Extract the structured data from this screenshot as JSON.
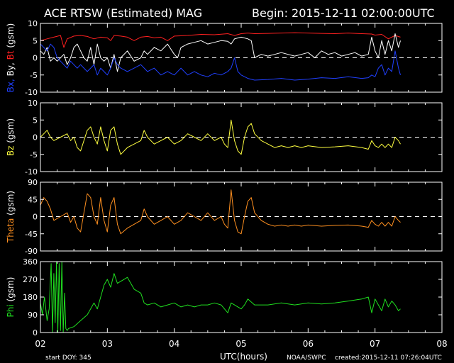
{
  "header": {
    "title": "ACE RTSW (Estimated) MAG",
    "begin": "Begin: 2015-12-11 02:00:00UTC"
  },
  "footer": {
    "start_doy": "start DOY:  345",
    "xlabel": "UTC(hours)",
    "agency": "NOAA/SWPC",
    "created": "created:2015-12-11 07:26:04UTC"
  },
  "colors": {
    "background": "#000000",
    "frame": "#ffffff",
    "bt": "#ff2020",
    "by": "#ffffff",
    "bx": "#2040ff",
    "bz": "#ffff40",
    "theta": "#ff9020",
    "phi": "#20e020"
  },
  "chart_data": [
    {
      "type": "line",
      "panel": "B components",
      "ylabel_parts": [
        {
          "text": "Bx,",
          "color": "#2040ff"
        },
        {
          "text": "By,",
          "color": "#ffffff"
        },
        {
          "text": "Bt",
          "color": "#ff2020"
        },
        {
          "text": "(gsm)",
          "color": "#ffffff"
        }
      ],
      "ylim": [
        -10,
        10
      ],
      "yticks": [
        10,
        5,
        0,
        -5,
        -10
      ],
      "zero_line": true,
      "xlim": [
        2,
        8
      ],
      "xticks": [
        "02",
        "03",
        "04",
        "05",
        "06",
        "07",
        "08"
      ],
      "series": [
        {
          "name": "Bt",
          "color": "#ff2020",
          "x": [
            2.0,
            2.1,
            2.2,
            2.3,
            2.35,
            2.4,
            2.5,
            2.6,
            2.7,
            2.8,
            2.9,
            3.0,
            3.05,
            3.1,
            3.2,
            3.3,
            3.4,
            3.5,
            3.6,
            3.7,
            3.8,
            3.9,
            4.0,
            4.2,
            4.4,
            4.6,
            4.8,
            4.9,
            5.0,
            5.1,
            5.2,
            5.4,
            5.6,
            5.8,
            6.0,
            6.2,
            6.4,
            6.6,
            6.8,
            6.95,
            7.0,
            7.1,
            7.2,
            7.3,
            7.38
          ],
          "values": [
            5,
            5.5,
            6,
            6.5,
            3,
            5.5,
            6.3,
            6.5,
            6.2,
            5.5,
            6,
            5.8,
            5,
            6.5,
            6.3,
            6,
            5,
            6,
            6.2,
            5.8,
            6,
            5,
            6.3,
            6.5,
            6.8,
            6.7,
            7,
            6.5,
            7,
            7.2,
            7,
            7.1,
            7.2,
            7.3,
            7.2,
            7.1,
            7,
            7.2,
            7,
            6.9,
            6.6,
            6.8,
            5.5,
            6.5,
            6
          ]
        },
        {
          "name": "By",
          "color": "#ffffff",
          "x": [
            2.0,
            2.05,
            2.1,
            2.15,
            2.2,
            2.25,
            2.3,
            2.35,
            2.4,
            2.45,
            2.5,
            2.55,
            2.6,
            2.65,
            2.7,
            2.75,
            2.8,
            2.85,
            2.9,
            2.95,
            3.0,
            3.05,
            3.1,
            3.15,
            3.2,
            3.3,
            3.4,
            3.5,
            3.55,
            3.6,
            3.7,
            3.8,
            3.9,
            4.0,
            4.05,
            4.1,
            4.2,
            4.3,
            4.4,
            4.5,
            4.6,
            4.7,
            4.8,
            4.85,
            4.9,
            5.0,
            5.1,
            5.15,
            5.2,
            5.3,
            5.4,
            5.5,
            5.6,
            5.7,
            5.8,
            5.9,
            6.0,
            6.1,
            6.2,
            6.3,
            6.4,
            6.5,
            6.6,
            6.7,
            6.8,
            6.9,
            6.95,
            7.0,
            7.05,
            7.1,
            7.15,
            7.2,
            7.25,
            7.3,
            7.35,
            7.38
          ],
          "values": [
            2,
            1,
            3,
            -1,
            0,
            -1,
            0,
            1,
            -2,
            0,
            3,
            4,
            2,
            0,
            -1,
            3,
            -2,
            4,
            0,
            -1,
            0,
            -3,
            1,
            -4,
            0,
            2,
            -1,
            0,
            2,
            1,
            3,
            2,
            4,
            1,
            0,
            3,
            4,
            4.5,
            5,
            4,
            4.5,
            5,
            4.8,
            4,
            5.5,
            6,
            5.5,
            5,
            0,
            1,
            0.5,
            1,
            1.5,
            1,
            0.5,
            1,
            1.5,
            0,
            2,
            1,
            1.5,
            0.5,
            1,
            1.5,
            0.5,
            1,
            6,
            2,
            0,
            5,
            1,
            5,
            2,
            7,
            3,
            5
          ]
        },
        {
          "name": "Bx",
          "color": "#2040ff",
          "x": [
            2.0,
            2.05,
            2.1,
            2.15,
            2.2,
            2.25,
            2.3,
            2.35,
            2.4,
            2.45,
            2.5,
            2.55,
            2.6,
            2.65,
            2.7,
            2.75,
            2.8,
            2.85,
            2.9,
            2.95,
            3.0,
            3.05,
            3.1,
            3.15,
            3.2,
            3.3,
            3.4,
            3.5,
            3.6,
            3.7,
            3.8,
            3.9,
            4.0,
            4.1,
            4.2,
            4.3,
            4.4,
            4.5,
            4.6,
            4.7,
            4.8,
            4.85,
            4.9,
            4.95,
            5.0,
            5.1,
            5.2,
            5.4,
            5.6,
            5.8,
            6.0,
            6.2,
            6.4,
            6.6,
            6.8,
            6.9,
            6.95,
            7.0,
            7.05,
            7.1,
            7.15,
            7.2,
            7.25,
            7.3,
            7.35,
            7.38
          ],
          "values": [
            4,
            3,
            2,
            4,
            3,
            0,
            -1,
            -2,
            -3,
            -1,
            -2,
            -3,
            -2,
            -3,
            -4,
            -3,
            -2,
            -5,
            -3,
            -4,
            -5,
            -3,
            0,
            -2,
            -3,
            -4,
            -3,
            -2,
            -4,
            -3,
            -5,
            -4,
            -5,
            -3,
            -5,
            -4,
            -5,
            -5.5,
            -4.5,
            -5,
            -4,
            -3,
            0,
            -4,
            -5,
            -6,
            -6.5,
            -6.3,
            -6,
            -6.5,
            -6.2,
            -5.8,
            -6,
            -5.5,
            -6,
            -5.8,
            -5,
            -5.5,
            -3,
            -2,
            -5,
            -3,
            -4,
            2,
            -3,
            -5
          ]
        }
      ]
    },
    {
      "type": "line",
      "panel": "Bz",
      "ylabel_parts": [
        {
          "text": "Bz",
          "color": "#ffff40"
        },
        {
          "text": "(gsm)",
          "color": "#ffffff"
        }
      ],
      "ylim": [
        -10,
        10
      ],
      "yticks": [
        10,
        5,
        0,
        -5,
        -10
      ],
      "zero_line": true,
      "series": [
        {
          "name": "Bz",
          "color": "#ffff40",
          "x": [
            2.0,
            2.05,
            2.1,
            2.15,
            2.2,
            2.3,
            2.4,
            2.45,
            2.5,
            2.55,
            2.6,
            2.7,
            2.75,
            2.8,
            2.85,
            2.9,
            2.95,
            3.0,
            3.05,
            3.1,
            3.15,
            3.2,
            3.3,
            3.4,
            3.5,
            3.55,
            3.6,
            3.7,
            3.8,
            3.9,
            4.0,
            4.1,
            4.2,
            4.3,
            4.4,
            4.5,
            4.6,
            4.7,
            4.75,
            4.8,
            4.85,
            4.9,
            4.95,
            5.0,
            5.05,
            5.1,
            5.15,
            5.2,
            5.3,
            5.4,
            5.5,
            5.6,
            5.7,
            5.8,
            5.9,
            6.0,
            6.2,
            6.4,
            6.6,
            6.8,
            6.9,
            6.95,
            7.0,
            7.05,
            7.1,
            7.15,
            7.2,
            7.25,
            7.3,
            7.35,
            7.38
          ],
          "values": [
            0,
            1,
            2,
            0,
            -1,
            0,
            1,
            -1,
            0,
            -3,
            -4,
            2,
            3,
            0,
            -2,
            3,
            -1,
            -4,
            2,
            3,
            -2,
            -5,
            -3,
            -2,
            -1,
            2,
            0,
            -2,
            -1,
            0,
            -2,
            -1,
            1,
            0,
            -1,
            1,
            -1,
            0,
            -2,
            -3,
            5,
            -1,
            -4,
            -5,
            0,
            3,
            4,
            1,
            -1,
            -2,
            -3,
            -2.5,
            -3,
            -2.5,
            -3,
            -2.5,
            -3,
            -2.8,
            -2.5,
            -3,
            -3.5,
            -1,
            -2.5,
            -3,
            -2,
            -3,
            -2,
            -3,
            0,
            -1,
            -2
          ]
        }
      ]
    },
    {
      "type": "line",
      "panel": "Theta",
      "ylabel_parts": [
        {
          "text": "Theta",
          "color": "#ff9020"
        },
        {
          "text": "(gsm)",
          "color": "#ffffff"
        }
      ],
      "ylim": [
        -90,
        90
      ],
      "yticks": [
        90,
        45,
        0,
        -45,
        -90
      ],
      "zero_line": true,
      "series": [
        {
          "name": "Theta",
          "color": "#ff9020",
          "x": [
            2.0,
            2.05,
            2.1,
            2.15,
            2.2,
            2.3,
            2.4,
            2.45,
            2.5,
            2.55,
            2.6,
            2.7,
            2.75,
            2.8,
            2.85,
            2.9,
            2.95,
            3.0,
            3.05,
            3.1,
            3.15,
            3.2,
            3.3,
            3.4,
            3.5,
            3.55,
            3.6,
            3.7,
            3.8,
            3.9,
            4.0,
            4.1,
            4.2,
            4.3,
            4.4,
            4.5,
            4.6,
            4.7,
            4.75,
            4.8,
            4.85,
            4.9,
            4.95,
            5.0,
            5.05,
            5.1,
            5.15,
            5.2,
            5.3,
            5.4,
            5.5,
            5.6,
            5.7,
            5.8,
            5.9,
            6.0,
            6.2,
            6.4,
            6.6,
            6.8,
            6.9,
            6.95,
            7.0,
            7.05,
            7.1,
            7.15,
            7.2,
            7.25,
            7.3,
            7.35,
            7.38
          ],
          "values": [
            30,
            50,
            40,
            20,
            -10,
            0,
            10,
            -15,
            0,
            -30,
            -40,
            60,
            50,
            0,
            -20,
            50,
            -10,
            -40,
            30,
            50,
            -20,
            -45,
            -30,
            -20,
            -10,
            20,
            0,
            -20,
            -10,
            0,
            -20,
            -10,
            10,
            0,
            -10,
            10,
            -10,
            0,
            -20,
            -30,
            70,
            -10,
            -40,
            -45,
            0,
            40,
            50,
            10,
            -10,
            -20,
            -25,
            -22,
            -25,
            -22,
            -25,
            -22,
            -25,
            -23,
            -22,
            -25,
            -28,
            -10,
            -20,
            -25,
            -15,
            -25,
            -15,
            -25,
            0,
            -10,
            -15
          ]
        }
      ]
    },
    {
      "type": "line",
      "panel": "Phi",
      "ylabel_parts": [
        {
          "text": "Phi",
          "color": "#20e020"
        },
        {
          "text": "(gsm)",
          "color": "#ffffff"
        }
      ],
      "ylim": [
        0,
        360
      ],
      "yticks": [
        360,
        270,
        180,
        90,
        0
      ],
      "zero_line": false,
      "series": [
        {
          "name": "Phi",
          "color": "#20e020",
          "x": [
            2.0,
            2.03,
            2.06,
            2.1,
            2.13,
            2.16,
            2.18,
            2.2,
            2.22,
            2.24,
            2.26,
            2.28,
            2.3,
            2.32,
            2.34,
            2.36,
            2.38,
            2.4,
            2.42,
            2.5,
            2.6,
            2.7,
            2.8,
            2.85,
            2.9,
            2.95,
            3.0,
            3.05,
            3.1,
            3.15,
            3.2,
            3.3,
            3.4,
            3.5,
            3.55,
            3.6,
            3.7,
            3.8,
            3.9,
            4.0,
            4.1,
            4.2,
            4.3,
            4.4,
            4.5,
            4.6,
            4.7,
            4.8,
            4.85,
            4.9,
            4.95,
            5.0,
            5.05,
            5.1,
            5.2,
            5.4,
            5.6,
            5.8,
            6.0,
            6.2,
            6.4,
            6.6,
            6.8,
            6.9,
            6.95,
            7.0,
            7.05,
            7.1,
            7.15,
            7.2,
            7.25,
            7.3,
            7.35,
            7.38
          ],
          "values": [
            150,
            90,
            180,
            60,
            120,
            350,
            0,
            300,
            50,
            360,
            0,
            350,
            10,
            360,
            0,
            200,
            20,
            10,
            20,
            30,
            60,
            90,
            150,
            120,
            180,
            240,
            270,
            230,
            300,
            250,
            260,
            280,
            220,
            200,
            150,
            140,
            150,
            130,
            140,
            150,
            130,
            140,
            130,
            140,
            140,
            150,
            140,
            100,
            150,
            140,
            130,
            120,
            140,
            170,
            140,
            140,
            150,
            140,
            150,
            145,
            150,
            160,
            170,
            180,
            100,
            170,
            140,
            110,
            170,
            130,
            160,
            140,
            110,
            120
          ]
        }
      ]
    }
  ]
}
